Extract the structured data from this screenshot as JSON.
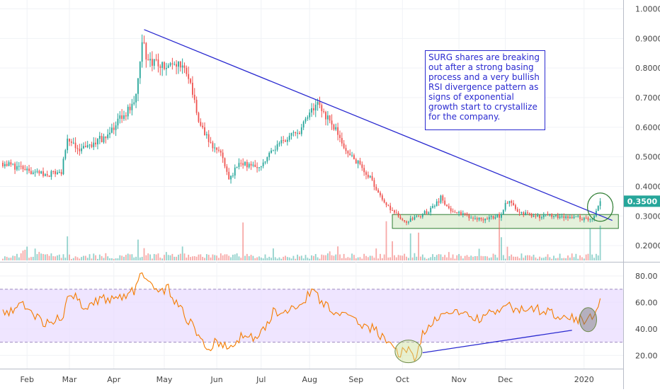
{
  "chart_data": [
    {
      "type": "candlestick",
      "panel": "price",
      "y_ticks": [
        "1.0000",
        "0.9000",
        "0.8000",
        "0.7000",
        "0.6000",
        "0.5000",
        "0.4000",
        "0.3000",
        "0.2000"
      ],
      "ylim": [
        0.15,
        1.03
      ],
      "last_price_label": "0.3500",
      "last_price": 0.35,
      "x_ticks": [
        "Feb",
        "Mar",
        "Apr",
        "May",
        "Jun",
        "Jul",
        "Aug",
        "Sep",
        "Oct",
        "Nov",
        "Dec",
        "2020"
      ],
      "series_shape": [
        {
          "day": 0,
          "price": 0.48
        },
        {
          "day": 10,
          "price": 0.46
        },
        {
          "day": 20,
          "price": 0.44
        },
        {
          "day": 29,
          "price": 0.45
        },
        {
          "day": 32,
          "price": 0.55
        },
        {
          "day": 38,
          "price": 0.52
        },
        {
          "day": 45,
          "price": 0.54
        },
        {
          "day": 52,
          "price": 0.58
        },
        {
          "day": 60,
          "price": 0.64
        },
        {
          "day": 66,
          "price": 0.7
        },
        {
          "day": 69,
          "price": 0.88
        },
        {
          "day": 73,
          "price": 0.82
        },
        {
          "day": 80,
          "price": 0.8
        },
        {
          "day": 86,
          "price": 0.82
        },
        {
          "day": 92,
          "price": 0.78
        },
        {
          "day": 97,
          "price": 0.62
        },
        {
          "day": 102,
          "price": 0.55
        },
        {
          "day": 108,
          "price": 0.52
        },
        {
          "day": 112,
          "price": 0.43
        },
        {
          "day": 118,
          "price": 0.48
        },
        {
          "day": 126,
          "price": 0.46
        },
        {
          "day": 134,
          "price": 0.52
        },
        {
          "day": 140,
          "price": 0.56
        },
        {
          "day": 146,
          "price": 0.58
        },
        {
          "day": 151,
          "price": 0.63
        },
        {
          "day": 155,
          "price": 0.68
        },
        {
          "day": 160,
          "price": 0.64
        },
        {
          "day": 166,
          "price": 0.58
        },
        {
          "day": 170,
          "price": 0.52
        },
        {
          "day": 176,
          "price": 0.48
        },
        {
          "day": 182,
          "price": 0.43
        },
        {
          "day": 188,
          "price": 0.36
        },
        {
          "day": 194,
          "price": 0.31
        },
        {
          "day": 200,
          "price": 0.28
        },
        {
          "day": 206,
          "price": 0.3
        },
        {
          "day": 212,
          "price": 0.32
        },
        {
          "day": 217,
          "price": 0.36
        },
        {
          "day": 222,
          "price": 0.32
        },
        {
          "day": 230,
          "price": 0.3
        },
        {
          "day": 238,
          "price": 0.29
        },
        {
          "day": 246,
          "price": 0.3
        },
        {
          "day": 250,
          "price": 0.35
        },
        {
          "day": 256,
          "price": 0.31
        },
        {
          "day": 264,
          "price": 0.3
        },
        {
          "day": 272,
          "price": 0.3
        },
        {
          "day": 280,
          "price": 0.3
        },
        {
          "day": 288,
          "price": 0.29
        },
        {
          "day": 293,
          "price": 0.3
        },
        {
          "day": 296,
          "price": 0.35
        }
      ],
      "trendline": {
        "start": {
          "day": 70,
          "price": 0.93
        },
        "end": {
          "day": 302,
          "price": 0.285
        }
      },
      "support_zone": {
        "day_start": 193,
        "day_end": 305,
        "price_low": 0.258,
        "price_high": 0.305
      },
      "breakout_circle": {
        "day": 296,
        "price": 0.33
      },
      "annotation": "SURG shares are breaking out after a strong basing process and a very bullish RSI divergence pattern as signs of exponential growth start to crystallize for the company.",
      "colors": {
        "up": "#26a69a",
        "down": "#ef5350",
        "trendline": "#2a2ad0",
        "zone": "#2e7d32"
      }
    },
    {
      "type": "line",
      "panel": "rsi",
      "y_ticks": [
        "80.00",
        "60.00",
        "40.00",
        "20.00"
      ],
      "ylim": [
        10,
        88
      ],
      "bands": [
        30,
        70
      ],
      "series_shape": [
        {
          "day": 0,
          "value": 52
        },
        {
          "day": 10,
          "value": 58
        },
        {
          "day": 20,
          "value": 45
        },
        {
          "day": 30,
          "value": 48
        },
        {
          "day": 33,
          "value": 68
        },
        {
          "day": 40,
          "value": 58
        },
        {
          "day": 50,
          "value": 62
        },
        {
          "day": 60,
          "value": 65
        },
        {
          "day": 66,
          "value": 70
        },
        {
          "day": 68,
          "value": 82
        },
        {
          "day": 74,
          "value": 70
        },
        {
          "day": 82,
          "value": 70
        },
        {
          "day": 88,
          "value": 55
        },
        {
          "day": 95,
          "value": 40
        },
        {
          "day": 100,
          "value": 25
        },
        {
          "day": 106,
          "value": 30
        },
        {
          "day": 112,
          "value": 24
        },
        {
          "day": 118,
          "value": 35
        },
        {
          "day": 126,
          "value": 32
        },
        {
          "day": 134,
          "value": 52
        },
        {
          "day": 142,
          "value": 55
        },
        {
          "day": 150,
          "value": 63
        },
        {
          "day": 153,
          "value": 68
        },
        {
          "day": 160,
          "value": 58
        },
        {
          "day": 168,
          "value": 50
        },
        {
          "day": 176,
          "value": 45
        },
        {
          "day": 184,
          "value": 40
        },
        {
          "day": 190,
          "value": 30
        },
        {
          "day": 196,
          "value": 22
        },
        {
          "day": 202,
          "value": 24
        },
        {
          "day": 204,
          "value": 18
        },
        {
          "day": 208,
          "value": 35
        },
        {
          "day": 214,
          "value": 45
        },
        {
          "day": 220,
          "value": 55
        },
        {
          "day": 228,
          "value": 50
        },
        {
          "day": 236,
          "value": 48
        },
        {
          "day": 244,
          "value": 52
        },
        {
          "day": 250,
          "value": 58
        },
        {
          "day": 256,
          "value": 54
        },
        {
          "day": 264,
          "value": 55
        },
        {
          "day": 272,
          "value": 52
        },
        {
          "day": 280,
          "value": 50
        },
        {
          "day": 288,
          "value": 46
        },
        {
          "day": 292,
          "value": 50
        },
        {
          "day": 296,
          "value": 62
        }
      ],
      "low_circle": {
        "day": 201,
        "value": 23
      },
      "high_circle": {
        "day": 290,
        "value": 47
      },
      "divergence_line": {
        "start": {
          "day": 208,
          "value": 22
        },
        "end": {
          "day": 282,
          "value": 39
        }
      },
      "colors": {
        "line": "#f57c00",
        "band_fill": "#eadcff",
        "band_edge": "#9e8cc0",
        "divergence": "#2a2ad0",
        "circle": "#6e8b4a"
      }
    }
  ]
}
